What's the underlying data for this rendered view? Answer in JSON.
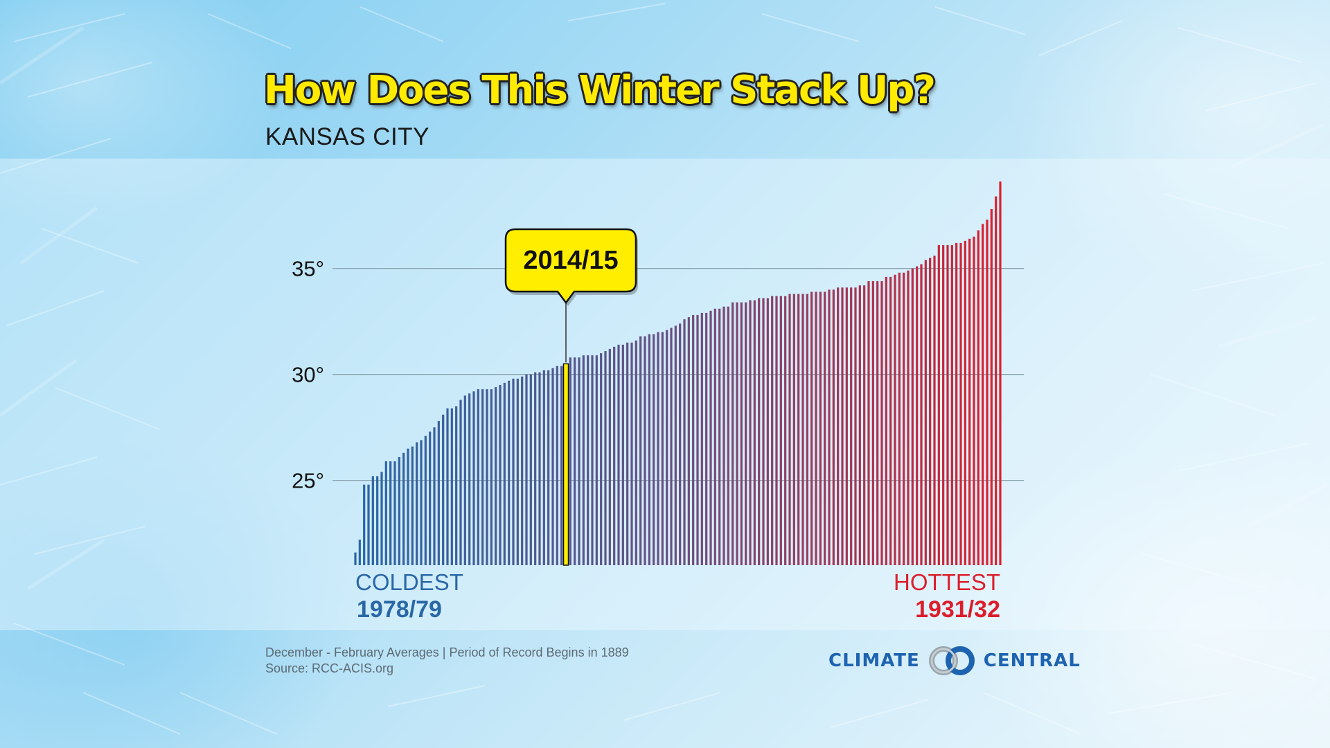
{
  "title": "How Does This Winter Stack Up?",
  "subtitle": "KANSAS CITY",
  "chart_data": {
    "type": "bar",
    "ylim": [
      21,
      40
    ],
    "yticks": [
      {
        "value": 25,
        "label": "25°"
      },
      {
        "value": 30,
        "label": "30°"
      },
      {
        "value": 35,
        "label": "35°"
      }
    ],
    "grid": true,
    "values": [
      21.6,
      22.2,
      24.8,
      24.8,
      25.2,
      25.2,
      25.4,
      25.9,
      25.9,
      25.9,
      26.1,
      26.3,
      26.5,
      26.6,
      26.8,
      26.9,
      27.1,
      27.3,
      27.5,
      27.8,
      28.1,
      28.4,
      28.4,
      28.5,
      28.8,
      29.0,
      29.1,
      29.2,
      29.3,
      29.3,
      29.3,
      29.3,
      29.4,
      29.5,
      29.6,
      29.7,
      29.8,
      29.8,
      29.9,
      30.0,
      30.0,
      30.1,
      30.1,
      30.2,
      30.2,
      30.3,
      30.4,
      30.4,
      30.5,
      30.8,
      30.8,
      30.8,
      30.9,
      30.9,
      30.9,
      30.9,
      31.0,
      31.1,
      31.2,
      31.3,
      31.4,
      31.4,
      31.5,
      31.5,
      31.6,
      31.8,
      31.8,
      31.9,
      31.9,
      32.0,
      32.0,
      32.1,
      32.2,
      32.3,
      32.4,
      32.6,
      32.7,
      32.8,
      32.8,
      32.9,
      32.9,
      33.0,
      33.1,
      33.1,
      33.2,
      33.2,
      33.4,
      33.4,
      33.4,
      33.4,
      33.5,
      33.5,
      33.6,
      33.6,
      33.6,
      33.7,
      33.7,
      33.7,
      33.7,
      33.8,
      33.8,
      33.8,
      33.8,
      33.8,
      33.9,
      33.9,
      33.9,
      33.9,
      34.0,
      34.0,
      34.1,
      34.1,
      34.1,
      34.1,
      34.1,
      34.2,
      34.2,
      34.4,
      34.4,
      34.4,
      34.4,
      34.6,
      34.6,
      34.7,
      34.8,
      34.8,
      34.9,
      35.0,
      35.1,
      35.2,
      35.4,
      35.5,
      35.6,
      36.1,
      36.1,
      36.1,
      36.1,
      36.2,
      36.2,
      36.3,
      36.4,
      36.5,
      36.8,
      37.1,
      37.3,
      37.8,
      38.4,
      39.1
    ],
    "highlight": {
      "index": 48,
      "label": "2014/15"
    },
    "coldest": {
      "label": "COLDEST",
      "season": "1978/79"
    },
    "hottest": {
      "label": "HOTTEST",
      "season": "1931/32"
    },
    "colors": {
      "cold": "#2a67a6",
      "mid": "#6a4f82",
      "hot": "#dc1e2c",
      "highlight": "#ffee00",
      "callout": "#ffee00",
      "grid": "#8aa4b0"
    }
  },
  "footer": {
    "line1": "December - February Averages | Period of Record Begins in 1889",
    "line2": "Source: RCC-ACIS.org"
  },
  "logo": {
    "left": "CLIMATE",
    "right": "CENTRAL"
  }
}
